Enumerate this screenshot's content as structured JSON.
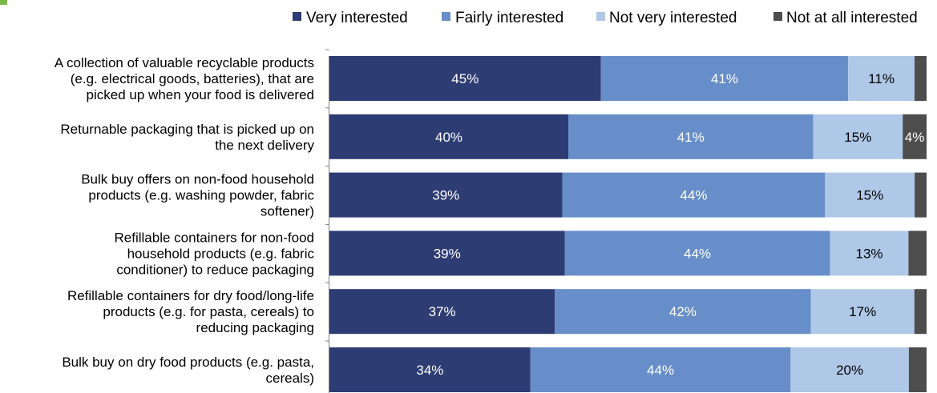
{
  "chart_data": {
    "type": "bar",
    "orientation": "horizontal",
    "stacked": true,
    "percent_axis": true,
    "legend_position": "top",
    "grid": false,
    "categories": [
      [
        "A collection of valuable recyclable products",
        "(e.g. electrical goods, batteries), that are",
        "picked up when your food is delivered"
      ],
      [
        "Returnable packaging that is picked up on",
        "the next delivery"
      ],
      [
        "Bulk buy offers on non-food household",
        "products (e.g. washing powder, fabric",
        "softener)"
      ],
      [
        "Refillable containers for non-food",
        "household products (e.g. fabric",
        "conditioner) to reduce packaging"
      ],
      [
        "Refillable containers for dry food/long-life",
        "products (e.g. for pasta, cereals) to",
        "reducing packaging"
      ],
      [
        "Bulk buy on dry food products (e.g. pasta,",
        "cereals)"
      ]
    ],
    "series": [
      {
        "name": "Very interested",
        "color": "#2e3c74",
        "label_color": "#ffffff",
        "values": [
          45,
          40,
          39,
          39,
          37,
          34
        ],
        "labels": [
          "45%",
          "40%",
          "39%",
          "39%",
          "37%",
          "34%"
        ]
      },
      {
        "name": "Fairly interested",
        "color": "#678ec8",
        "label_color": "#ffffff",
        "values": [
          41,
          41,
          44,
          44,
          42,
          44
        ],
        "labels": [
          "41%",
          "41%",
          "44%",
          "44%",
          "42%",
          "44%"
        ]
      },
      {
        "name": "Not very interested",
        "color": "#b0c8e8",
        "label_color": "#000000",
        "values": [
          11,
          15,
          15,
          13,
          17,
          20
        ],
        "labels": [
          "11%",
          "15%",
          "15%",
          "13%",
          "17%",
          "20%"
        ]
      },
      {
        "name": "Not at all interested",
        "color": "#4d4d4d",
        "label_color": "#ffffff",
        "values": [
          2,
          4,
          2,
          3,
          2,
          3
        ],
        "labels": [
          "",
          "4%",
          "",
          "",
          "",
          ""
        ]
      }
    ]
  }
}
